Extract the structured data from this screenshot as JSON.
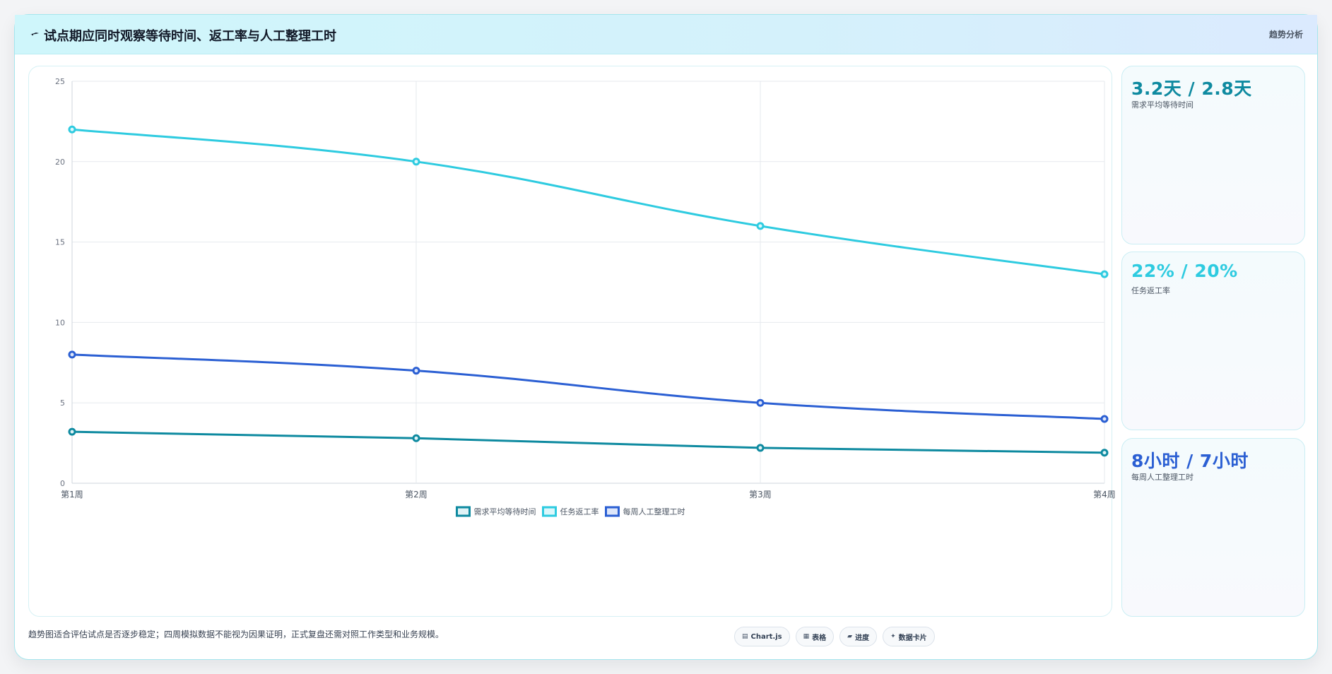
{
  "header": {
    "title": "试点期应同时观察等待时间、返工率与人工整理工时",
    "tag": "趋势分析",
    "icon": "sparkle-icon"
  },
  "stats": [
    {
      "value": "3.2天 / 2.8天",
      "label": "需求平均等待时间",
      "color": "#0e8aa0"
    },
    {
      "value": "22% / 20%",
      "label": "任务返工率",
      "color": "#2ecbe0"
    },
    {
      "value": "8小时 / 7小时",
      "label": "每周人工整理工时",
      "color": "#2b5fd3"
    }
  ],
  "footer": {
    "note": "趋势图适合评估试点是否逐步稳定；四周模拟数据不能视为因果证明，正式复盘还需对照工作类型和业务规模。",
    "chips": [
      {
        "icon": "chart-icon",
        "label": "Chart.js"
      },
      {
        "icon": "table-icon",
        "label": "表格"
      },
      {
        "icon": "progress-icon",
        "label": "进度"
      },
      {
        "icon": "card-icon",
        "label": "数据卡片"
      }
    ]
  },
  "chart_data": {
    "type": "line",
    "categories": [
      "第1周",
      "第2周",
      "第3周",
      "第4周"
    ],
    "ylim": [
      0,
      25
    ],
    "yticks": [
      0,
      5,
      10,
      15,
      20,
      25
    ],
    "grid": true,
    "legend_position": "bottom",
    "series": [
      {
        "name": "需求平均等待时间",
        "values": [
          3.2,
          2.8,
          2.2,
          1.9
        ],
        "color": "#0e8aa0",
        "fill": "#dff3f6"
      },
      {
        "name": "任务返工率",
        "values": [
          22,
          20,
          16,
          13
        ],
        "color": "#2ecbe0",
        "fill": "#dcf7fb"
      },
      {
        "name": "每周人工整理工时",
        "values": [
          8,
          7,
          5,
          4
        ],
        "color": "#2b5fd3",
        "fill": "#dde6fa"
      }
    ]
  }
}
